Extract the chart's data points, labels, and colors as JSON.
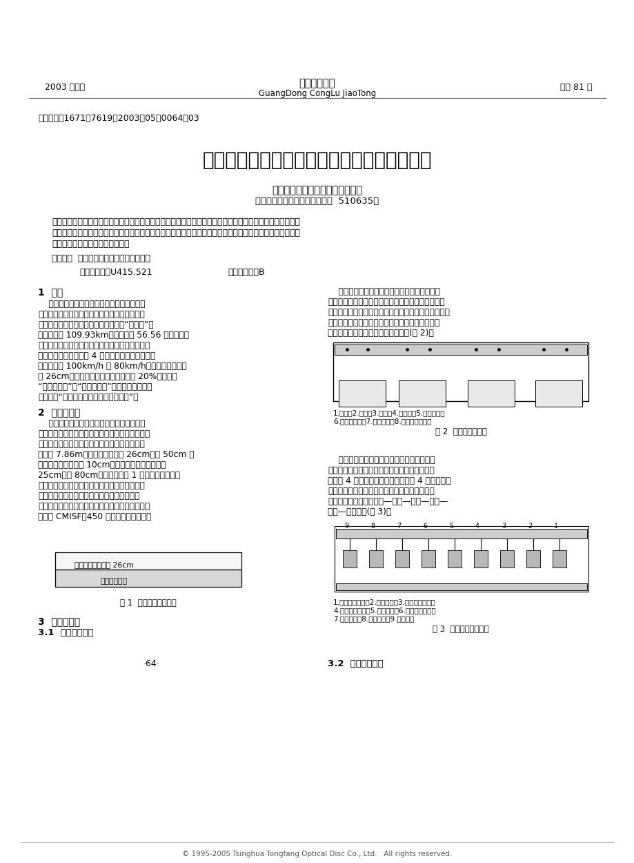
{
  "page_bg": "#ffffff",
  "header_left": "2003 年增刊",
  "header_center_line1": "广东公路交通",
  "header_center_line2": "GuangDong CongLu JiaoTong",
  "header_right": "总第 81 期",
  "article_id": "文章编号：1671－7619（2003）05－0064－03",
  "title": "改装摊铺机实现京珠北隙道路面滑模全幅摊铺",
  "authors": "李莲生，杨东来，洪柏钓，曾伟兴",
  "affiliation": "（广东冠粤路桥有限公司，广州  510635）",
  "abstract_line1": "摘要：摊铺机一般只能摊铺高于行走履带面标高的路面或进行零间隙摊铺，对于低于行走履带面标高的路面就",
  "abstract_line2": "无法完成摊铺任务。经过对摊铺机的改装，成功实现了隙道钓纤维混凝土路面全幅滑模摊铺。并对钓纤维混凝",
  "abstract_line3": "土在隙道路面施工了有益的探讨。",
  "keywords_line": "关键词：  摊铺机；改装；隙道；滑模施工",
  "class_line": "中国分类号：U415.521",
  "docid_line": "文献标识码：B",
  "s1_title": "1  概述",
  "s1_left": [
    "    北京～珠海高速公路是国道主干线之一，湘",
    "粤两省交界地小塘至广东省韶关市甘塘段是其中",
    "重要的一段，它位于广东省北部，简称“京珠北”。",
    "该路段全长 109.93km，概算投资 56.56 亿元，是国",
    "家重点工程、世行贷款项目、广东省第一条山区高",
    "速公路。本路段按双向 4 车道标准设计，设计行车",
    "速度分别为 100km/h 和 80km/h。隙道路面设计厕",
    "度 26cm，本项目桥隙合计占总里程的 20%，形成了",
    "“桥－隙－桥”和“隙－桥－隙”的线型奇观。世行",
    "专家誉为“中国最具挑战性公路建设项目”。"
  ],
  "s2_title": "2  问题的提出",
  "s2_left": [
    "    京珠北已完工隙道只剩钓纤维混凝土路面施",
    "工，按照专家意见，隙道路面施工必须实行滑模摊",
    "铺机全幅一次摊铺。已摊铺贫混凝土基层的隙道",
    "路面宽 7.86m，两边有高出基层 26cm、宽 50cm 的",
    "盖板排水沟，盖板厕 10cm，通讯电缆沟高于排水沟",
    "25cm，宽 80cm。工作面如图 1 所示。要实现隙道",
    "路面滑模全幅摊铺，摊铺机只能行走在经过加固",
    "的通讯电缆盖板上。一般摊铺机成型底模放不",
    "下，不能完成滑模摊铺施工任务。针对这一问题，",
    "我们对 CMISF－450 摊铺机进行了改装。"
  ],
  "fig1_layer1": "钓纤维混凝土面层 26cm",
  "fig1_layer2": "贫混凝土基层",
  "fig1_caption": "图 1  隙道工作面示意图",
  "s3_title": "3  改装摊铺机",
  "s31_title": "3.1  摊铺机的组成",
  "page_num": "·64·",
  "s1_right": [
    "    无论哪一种滑模摊铺机，其基本的组成部分包",
    "括：动力系统、传动系统、行走及转向装置、摊铺装",
    "置、机架、浮动支腿、自动转向找平系统、操作台和一",
    "些辅助装置。其中摊铺装置和机架的连接是通过左",
    "右端两根支梁和中间两根支梁来完成(图 2)。"
  ],
  "fig2_label1": "1.螺格；2.夹盖；3.机架；4.端支梁；5.拉钉销孔；",
  "fig2_label2": "6.带槽口平板；7.螺槔拉鑉；8.成型盘悬挂耳轴",
  "fig2_caption": "图 2  左右端支梁连接",
  "s32_title": "3.2  摊铺机的改装",
  "s32_right": [
    "    机架全部是厕钓板焊接成筱式的结构架。左",
    "右端支梁的前后两头固定在机架上，它中间的左",
    "右前后 4 个吊点悬挂摊铺装置，并用 4 个螺槔拉鑉",
    "拉紧。整个机架又和浮动支腿固联和馒接。施工",
    "时利用摊铺装置完成分料—计量—内振—外振—",
    "成型—定型工作(图 3)。"
  ],
  "fig3_label1": "1.螺旋分料装置；2.计量装置；3.内部振捣装置；",
  "fig3_label2": "4.外部振捣装置；5.成型装置；6.定型抚光装置；",
  "fig3_label3": "7.中间支梁；8.调拱装置；9.悬挂销轴",
  "fig3_caption": "图 3  摊铺装置布置简图",
  "footer_text": "© 1995-2005 Tsinghua Tongfang Optical Disc Co., Ltd.   All rights reserved."
}
